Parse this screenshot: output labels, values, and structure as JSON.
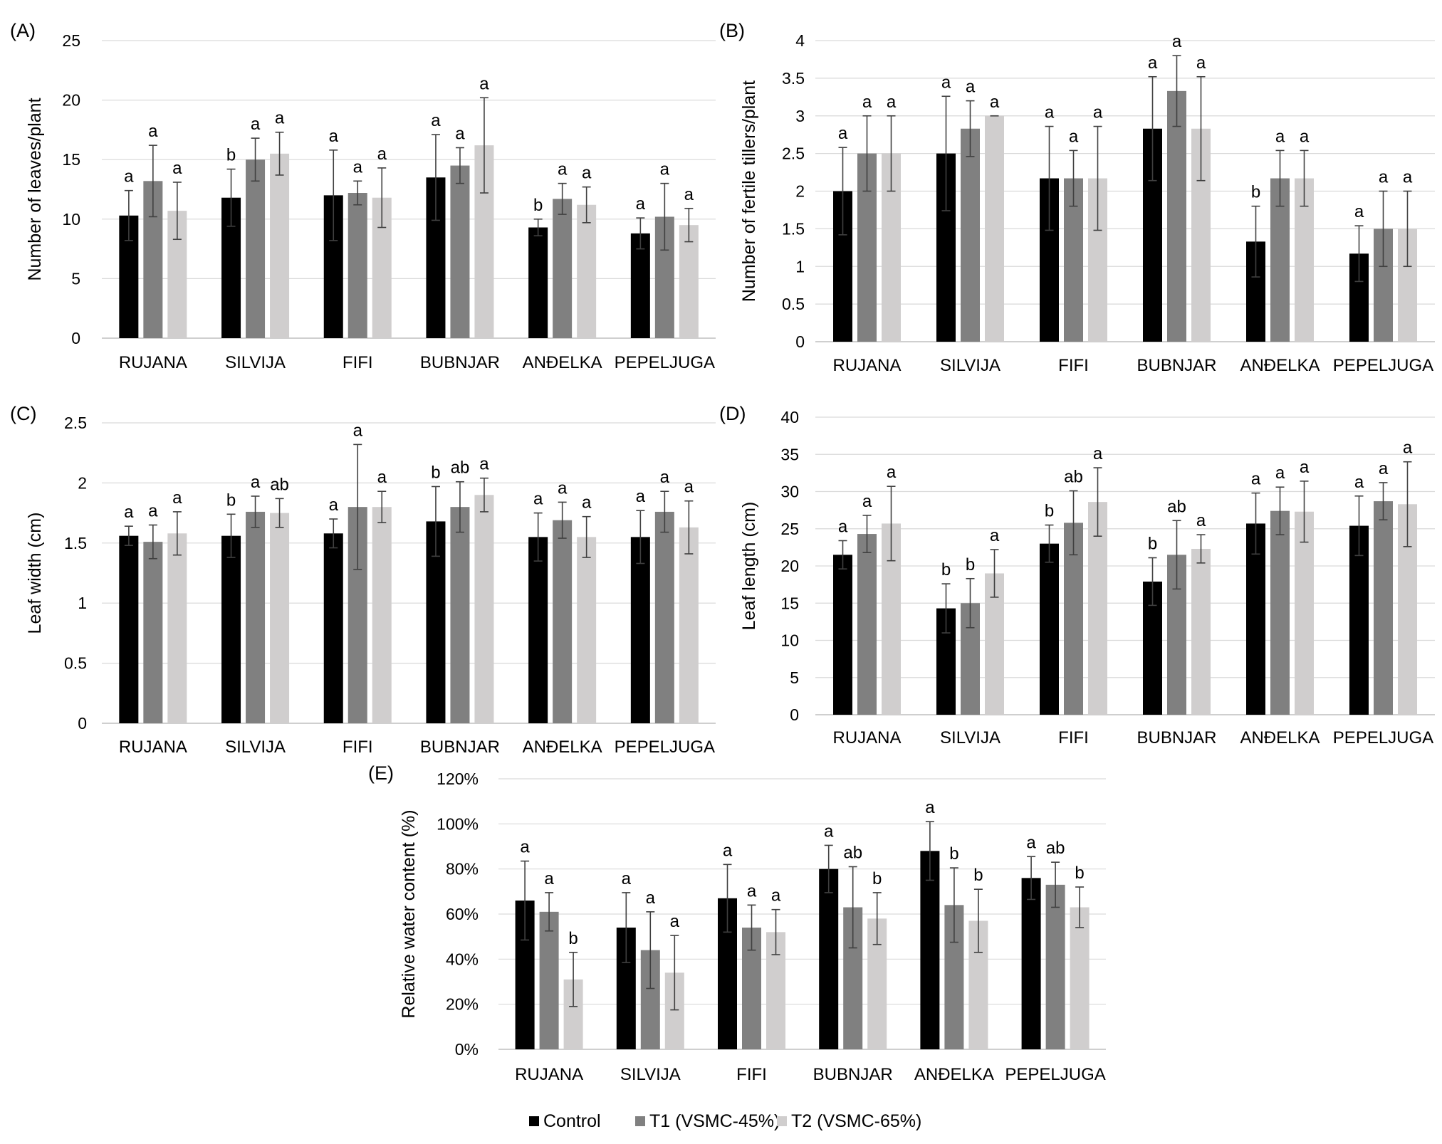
{
  "colors": {
    "control": "#000000",
    "t1": "#808080",
    "t2": "#d0cece",
    "grid": "#d9d9d9",
    "errorbar": "#404040"
  },
  "legend": [
    {
      "key": "control",
      "label": "Control"
    },
    {
      "key": "t1",
      "label": "T1 (VSMC-45%)"
    },
    {
      "key": "t2",
      "label": "T2 (VSMC-65%)"
    }
  ],
  "chart_data": [
    {
      "panel": "(A)",
      "type": "bar",
      "ylabel": "Number of leaves/plant",
      "ylim": [
        0,
        25
      ],
      "yticks": [
        0,
        5,
        10,
        15,
        20,
        25
      ],
      "categories": [
        "RUJANA",
        "SILVIJA",
        "FIFI",
        "BUBNJAR",
        "ANĐELKA",
        "PEPELJUGA"
      ],
      "series": [
        {
          "name": "Control",
          "key": "control",
          "values": [
            10.3,
            11.8,
            12.0,
            13.5,
            9.3,
            8.8
          ],
          "err": [
            2.1,
            2.4,
            3.8,
            3.6,
            0.7,
            1.3
          ],
          "letters": [
            "a",
            "b",
            "a",
            "a",
            "b",
            "a"
          ]
        },
        {
          "name": "T1 (VSMC-45%)",
          "key": "t1",
          "values": [
            13.2,
            15.0,
            12.2,
            14.5,
            11.7,
            10.2
          ],
          "err": [
            3.0,
            1.8,
            1.0,
            1.5,
            1.3,
            2.8
          ],
          "letters": [
            "a",
            "a",
            "a",
            "a",
            "a",
            "a"
          ]
        },
        {
          "name": "T2 (VSMC-65%)",
          "key": "t2",
          "values": [
            10.7,
            15.5,
            11.8,
            16.2,
            11.2,
            9.5
          ],
          "err": [
            2.4,
            1.8,
            2.5,
            4.0,
            1.5,
            1.4
          ],
          "letters": [
            "a",
            "a",
            "a",
            "a",
            "a",
            "a"
          ]
        }
      ]
    },
    {
      "panel": "(B)",
      "type": "bar",
      "ylabel": "Number of fertile tillers/plant",
      "ylim": [
        0,
        4
      ],
      "yticks": [
        0,
        0.5,
        1,
        1.5,
        2,
        2.5,
        3,
        3.5,
        4
      ],
      "categories": [
        "RUJANA",
        "SILVIJA",
        "FIFI",
        "BUBNJAR",
        "ANĐELKA",
        "PEPELJUGA"
      ],
      "series": [
        {
          "name": "Control",
          "key": "control",
          "values": [
            2.0,
            2.5,
            2.17,
            2.83,
            1.33,
            1.17
          ],
          "err": [
            0.58,
            0.76,
            0.69,
            0.69,
            0.47,
            0.37
          ],
          "letters": [
            "a",
            "a",
            "a",
            "a",
            "b",
            "a"
          ]
        },
        {
          "name": "T1 (VSMC-45%)",
          "key": "t1",
          "values": [
            2.5,
            2.83,
            2.17,
            3.33,
            2.17,
            1.5
          ],
          "err": [
            0.5,
            0.37,
            0.37,
            0.47,
            0.37,
            0.5
          ],
          "letters": [
            "a",
            "a",
            "a",
            "a",
            "a",
            "a"
          ]
        },
        {
          "name": "T2 (VSMC-65%)",
          "key": "t2",
          "values": [
            2.5,
            3.0,
            2.17,
            2.83,
            2.17,
            1.5
          ],
          "err": [
            0.5,
            0.0,
            0.69,
            0.69,
            0.37,
            0.5
          ],
          "letters": [
            "a",
            "a",
            "a",
            "a",
            "a",
            "a"
          ]
        }
      ]
    },
    {
      "panel": "(C)",
      "type": "bar",
      "ylabel": "Leaf width (cm)",
      "ylim": [
        0,
        2.5
      ],
      "yticks": [
        0,
        0.5,
        1,
        1.5,
        2,
        2.5
      ],
      "categories": [
        "RUJANA",
        "SILVIJA",
        "FIFI",
        "BUBNJAR",
        "ANĐELKA",
        "PEPELJUGA"
      ],
      "series": [
        {
          "name": "Control",
          "key": "control",
          "values": [
            1.56,
            1.56,
            1.58,
            1.68,
            1.55,
            1.55
          ],
          "err": [
            0.08,
            0.18,
            0.12,
            0.29,
            0.2,
            0.22
          ],
          "letters": [
            "a",
            "b",
            "a",
            "b",
            "a",
            "a"
          ]
        },
        {
          "name": "T1 (VSMC-45%)",
          "key": "t1",
          "values": [
            1.51,
            1.76,
            1.8,
            1.8,
            1.69,
            1.76
          ],
          "err": [
            0.14,
            0.13,
            0.52,
            0.21,
            0.15,
            0.17
          ],
          "letters": [
            "a",
            "a",
            "a",
            "ab",
            "a",
            "a"
          ]
        },
        {
          "name": "T2 (VSMC-65%)",
          "key": "t2",
          "values": [
            1.58,
            1.75,
            1.8,
            1.9,
            1.55,
            1.63
          ],
          "err": [
            0.18,
            0.12,
            0.13,
            0.14,
            0.17,
            0.22
          ],
          "letters": [
            "a",
            "ab",
            "a",
            "a",
            "a",
            "a"
          ]
        }
      ]
    },
    {
      "panel": "(D)",
      "type": "bar",
      "ylabel": "Leaf length  (cm)",
      "ylim": [
        0,
        40
      ],
      "yticks": [
        0,
        5,
        10,
        15,
        20,
        25,
        30,
        35,
        40
      ],
      "categories": [
        "RUJANA",
        "SILVIJA",
        "FIFI",
        "BUBNJAR",
        "ANĐELKA",
        "PEPELJUGA"
      ],
      "series": [
        {
          "name": "Control",
          "key": "control",
          "values": [
            21.5,
            14.3,
            23.0,
            17.9,
            25.7,
            25.4
          ],
          "err": [
            1.9,
            3.3,
            2.5,
            3.2,
            4.1,
            4.0
          ],
          "letters": [
            "a",
            "b",
            "b",
            "b",
            "a",
            "a"
          ]
        },
        {
          "name": "T1 (VSMC-45%)",
          "key": "t1",
          "values": [
            24.3,
            15.0,
            25.8,
            21.5,
            27.4,
            28.7
          ],
          "err": [
            2.5,
            3.3,
            4.3,
            4.6,
            3.2,
            2.5
          ],
          "letters": [
            "a",
            "b",
            "ab",
            "ab",
            "a",
            "a"
          ]
        },
        {
          "name": "T2 (VSMC-65%)",
          "key": "t2",
          "values": [
            25.7,
            19.0,
            28.6,
            22.3,
            27.3,
            28.3
          ],
          "err": [
            5.0,
            3.2,
            4.6,
            1.9,
            4.1,
            5.7
          ],
          "letters": [
            "a",
            "a",
            "a",
            "a",
            "a",
            "a"
          ]
        }
      ]
    },
    {
      "panel": "(E)",
      "type": "bar",
      "ylabel": "Relative water content (%)",
      "ylim": [
        0,
        1.2
      ],
      "yticks": [
        0,
        0.2,
        0.4,
        0.6,
        0.8,
        1.0,
        1.2
      ],
      "tick_labels": [
        "0%",
        "20%",
        "40%",
        "60%",
        "80%",
        "100%",
        "120%"
      ],
      "categories": [
        "RUJANA",
        "SILVIJA",
        "FIFI",
        "BUBNJAR",
        "ANĐELKA",
        "PEPELJUGA"
      ],
      "series": [
        {
          "name": "Control",
          "key": "control",
          "values": [
            0.66,
            0.54,
            0.67,
            0.8,
            0.88,
            0.76
          ],
          "err": [
            0.175,
            0.155,
            0.15,
            0.105,
            0.13,
            0.095
          ],
          "letters": [
            "a",
            "a",
            "a",
            "a",
            "a",
            "a"
          ]
        },
        {
          "name": "T1 (VSMC-45%)",
          "key": "t1",
          "values": [
            0.61,
            0.44,
            0.54,
            0.63,
            0.64,
            0.73
          ],
          "err": [
            0.085,
            0.17,
            0.1,
            0.18,
            0.165,
            0.1
          ],
          "letters": [
            "a",
            "a",
            "a",
            "ab",
            "b",
            "ab"
          ]
        },
        {
          "name": "T2 (VSMC-65%)",
          "key": "t2",
          "values": [
            0.31,
            0.34,
            0.52,
            0.58,
            0.57,
            0.63
          ],
          "err": [
            0.12,
            0.165,
            0.1,
            0.115,
            0.14,
            0.09
          ],
          "letters": [
            "b",
            "a",
            "a",
            "b",
            "b",
            "b"
          ]
        }
      ]
    }
  ]
}
